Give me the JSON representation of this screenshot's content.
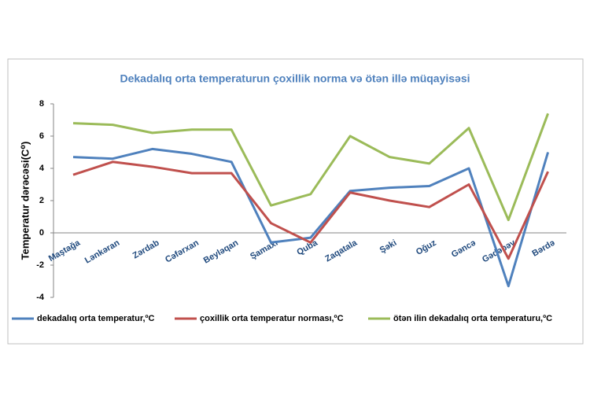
{
  "chart_data": {
    "type": "line",
    "title": "Dekadalıq orta temperaturun çoxillik norma və ötən illə müqayisəsi",
    "y_label": "Temperatur dərəcəsi(C⁰)",
    "categories": [
      "Maştağa",
      "Lənkəran",
      "Zərdab",
      "Cəfərxan",
      "Beyləqan",
      "Şamaxı",
      "Quba",
      "Zaqatala",
      "Şəki",
      "Oğuz",
      "Gəncə",
      "Gədəbəy",
      "Bərdə"
    ],
    "series": [
      {
        "name": "dekadalıq orta temperatur,ºC",
        "color": "#4f81bd",
        "values": [
          4.7,
          4.6,
          5.2,
          4.9,
          4.4,
          -0.6,
          -0.3,
          2.6,
          2.8,
          2.9,
          4.0,
          -3.3,
          5.0
        ]
      },
      {
        "name": "çoxillik orta temperatur norması,ºC",
        "color": "#c0504d",
        "values": [
          3.6,
          4.4,
          4.1,
          3.7,
          3.7,
          0.6,
          -0.6,
          2.5,
          2.0,
          1.6,
          3.0,
          -1.6,
          3.8
        ]
      },
      {
        "name": "ötən ilin dekadalıq orta temperaturu,ºC",
        "color": "#9bbb59",
        "values": [
          6.8,
          6.7,
          6.2,
          6.4,
          6.4,
          1.7,
          2.4,
          6.0,
          4.7,
          4.3,
          6.5,
          0.8,
          7.4
        ]
      }
    ],
    "ylim": [
      -4,
      8
    ],
    "yticks": [
      -4,
      -2,
      0,
      2,
      4,
      6,
      8
    ],
    "grid": false
  }
}
